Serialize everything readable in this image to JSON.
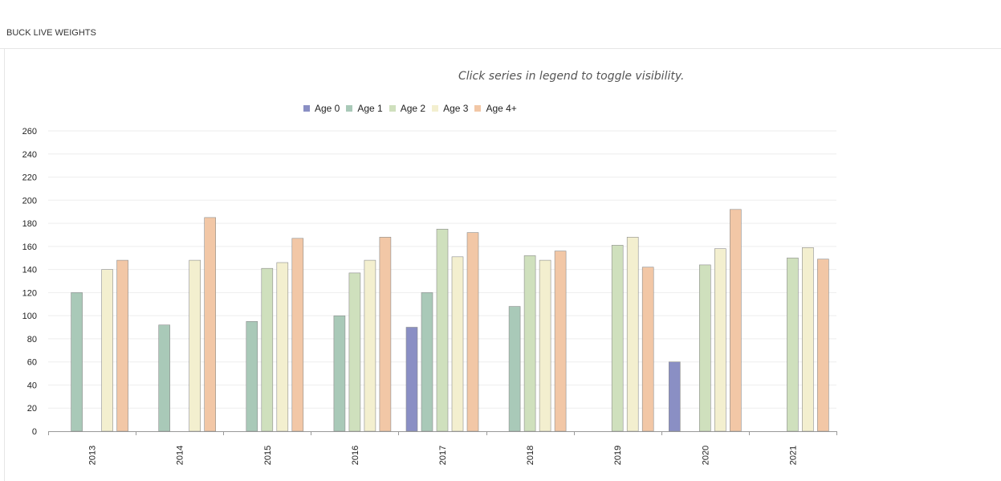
{
  "panel": {
    "title": "BUCK LIVE WEIGHTS"
  },
  "hint": "Click series in legend to toggle visibility.",
  "colors": {
    "Age 0": "#8a8fc4",
    "Age 1": "#a9c9b8",
    "Age 2": "#cfe0bd",
    "Age 3": "#f3efcf",
    "Age 4+": "#f2c7a6",
    "grid": "#eeeeee",
    "axis": "#999999"
  },
  "chart_data": {
    "type": "bar",
    "categories": [
      "2013",
      "2014",
      "2015",
      "2016",
      "2017",
      "2018",
      "2019",
      "2020",
      "2021"
    ],
    "series": [
      {
        "name": "Age 0",
        "values": [
          null,
          null,
          null,
          null,
          90,
          null,
          null,
          60,
          null
        ]
      },
      {
        "name": "Age 1",
        "values": [
          120,
          92,
          95,
          100,
          120,
          108,
          null,
          null,
          null
        ]
      },
      {
        "name": "Age 2",
        "values": [
          null,
          null,
          141,
          137,
          175,
          152,
          161,
          144,
          150
        ]
      },
      {
        "name": "Age 3",
        "values": [
          140,
          148,
          146,
          148,
          151,
          148,
          168,
          158,
          159
        ]
      },
      {
        "name": "Age 4+",
        "values": [
          148,
          185,
          167,
          168,
          172,
          156,
          142,
          192,
          149
        ]
      }
    ],
    "yticks": [
      0,
      20,
      40,
      60,
      80,
      100,
      120,
      140,
      160,
      180,
      200,
      220,
      240,
      260
    ],
    "ylim": [
      0,
      260
    ],
    "grid": true,
    "legend": "top-center",
    "x_tick_rotation": "vertical"
  }
}
